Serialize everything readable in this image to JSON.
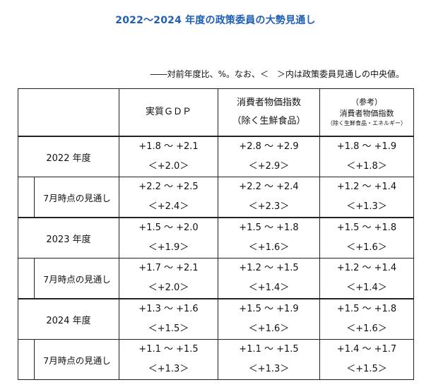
{
  "title": "2022～2024 年度の政策委員の大勢見通し",
  "note": "――対前年度比、%。なお、＜　＞内は政策委員見通しの中央値。",
  "headers": {
    "gdp": "実質ＧＤＰ",
    "cpi_line1": "消費者物価指数",
    "cpi_line2": "（除く生鮮食品）",
    "ref_line1": "（参考）",
    "ref_line2": "消費者物価指数",
    "ref_line3": "（除く生鮮食品・エネルギー）"
  },
  "rows": [
    {
      "year": "2022 年度",
      "main": {
        "gdp": {
          "range": "+1.8 ～ +2.1",
          "median": "＜+2.0＞"
        },
        "cpi": {
          "range": "+2.8 ～ +2.9",
          "median": "＜+2.9＞"
        },
        "core": {
          "range": "+1.8 ～ +1.9",
          "median": "＜+1.8＞"
        }
      },
      "outlook_label": "7月時点の見通し",
      "outlook": {
        "gdp": {
          "range": "+2.2 ～ +2.5",
          "median": "＜+2.4＞"
        },
        "cpi": {
          "range": "+2.2 ～ +2.4",
          "median": "＜+2.3＞"
        },
        "core": {
          "range": "+1.2 ～ +1.4",
          "median": "＜+1.3＞"
        }
      }
    },
    {
      "year": "2023 年度",
      "main": {
        "gdp": {
          "range": "+1.5 ～ +2.0",
          "median": "＜+1.9＞"
        },
        "cpi": {
          "range": "+1.5 ～ +1.8",
          "median": "＜+1.6＞"
        },
        "core": {
          "range": "+1.5 ～ +1.8",
          "median": "＜+1.6＞"
        }
      },
      "outlook_label": "7月時点の見通し",
      "outlook": {
        "gdp": {
          "range": "+1.7 ～ +2.1",
          "median": "＜+2.0＞"
        },
        "cpi": {
          "range": "+1.2 ～ +1.5",
          "median": "＜+1.4＞"
        },
        "core": {
          "range": "+1.2 ～ +1.4",
          "median": "＜+1.4＞"
        }
      }
    },
    {
      "year": "2024 年度",
      "main": {
        "gdp": {
          "range": "+1.3 ～ +1.6",
          "median": "＜+1.5＞"
        },
        "cpi": {
          "range": "+1.5 ～ +1.9",
          "median": "＜+1.6＞"
        },
        "core": {
          "range": "+1.5 ～ +1.8",
          "median": "＜+1.6＞"
        }
      },
      "outlook_label": "7月時点の見通し",
      "outlook": {
        "gdp": {
          "range": "+1.1 ～ +1.5",
          "median": "＜+1.3＞"
        },
        "cpi": {
          "range": "+1.1 ～ +1.5",
          "median": "＜+1.3＞"
        },
        "core": {
          "range": "+1.4 ～ +1.7",
          "median": "＜+1.5＞"
        }
      }
    }
  ]
}
